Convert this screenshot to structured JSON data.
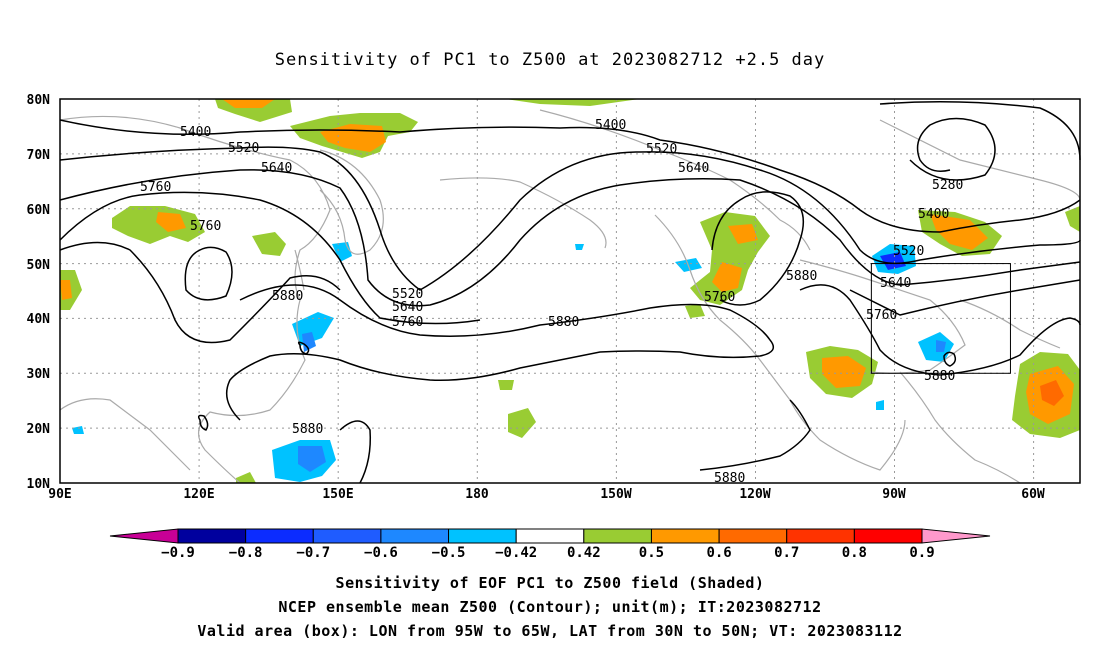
{
  "title": "Sensitivity of PC1 to Z500 at 2023082712 +2.5 day",
  "map": {
    "lat_labels": [
      "80N",
      "70N",
      "60N",
      "50N",
      "40N",
      "30N",
      "20N",
      "10N"
    ],
    "lon_labels": [
      "90E",
      "120E",
      "150E",
      "180",
      "150W",
      "120W",
      "90W",
      "60W"
    ],
    "lat_range": [
      10,
      80
    ],
    "lon_range_east": [
      90,
      310
    ],
    "box": {
      "lon_west": -95,
      "lon_east": -65,
      "lat_south": 30,
      "lat_north": 50
    },
    "contour_labels": [
      "5280",
      "5400",
      "5400",
      "5400",
      "5520",
      "5520",
      "5520",
      "5520",
      "5640",
      "5640",
      "5640",
      "5640",
      "5760",
      "5760",
      "5760",
      "5760",
      "5760",
      "5880",
      "5880",
      "5880",
      "5880",
      "5880",
      "5880"
    ],
    "grid": true
  },
  "colorbar": {
    "labels": [
      "-0.9",
      "-0.8",
      "-0.7",
      "-0.6",
      "-0.5",
      "-0.42",
      "0.42",
      "0.5",
      "0.6",
      "0.7",
      "0.8",
      "0.9"
    ],
    "colors": [
      "#00009e",
      "#0c2cff",
      "#1f5cff",
      "#1e88ff",
      "#00c2ff",
      "#ffffff",
      "#99cc33",
      "#ff9900",
      "#ff6a00",
      "#ff3300",
      "#ff0000"
    ],
    "low_extend_color": "#c80096",
    "high_extend_color": "#ff99cc"
  },
  "captions": {
    "line1": "Sensitivity of EOF PC1 to Z500 field (Shaded)",
    "line2": "NCEP ensemble mean Z500 (Contour); unit(m); IT:2023082712",
    "line3": "Valid area (box): LON from 95W to 65W, LAT from 30N to 50N; VT: 2023083112"
  },
  "colors": {
    "land_outline": "#aaaaaa",
    "contour": "#000000",
    "grid": "#999999"
  }
}
